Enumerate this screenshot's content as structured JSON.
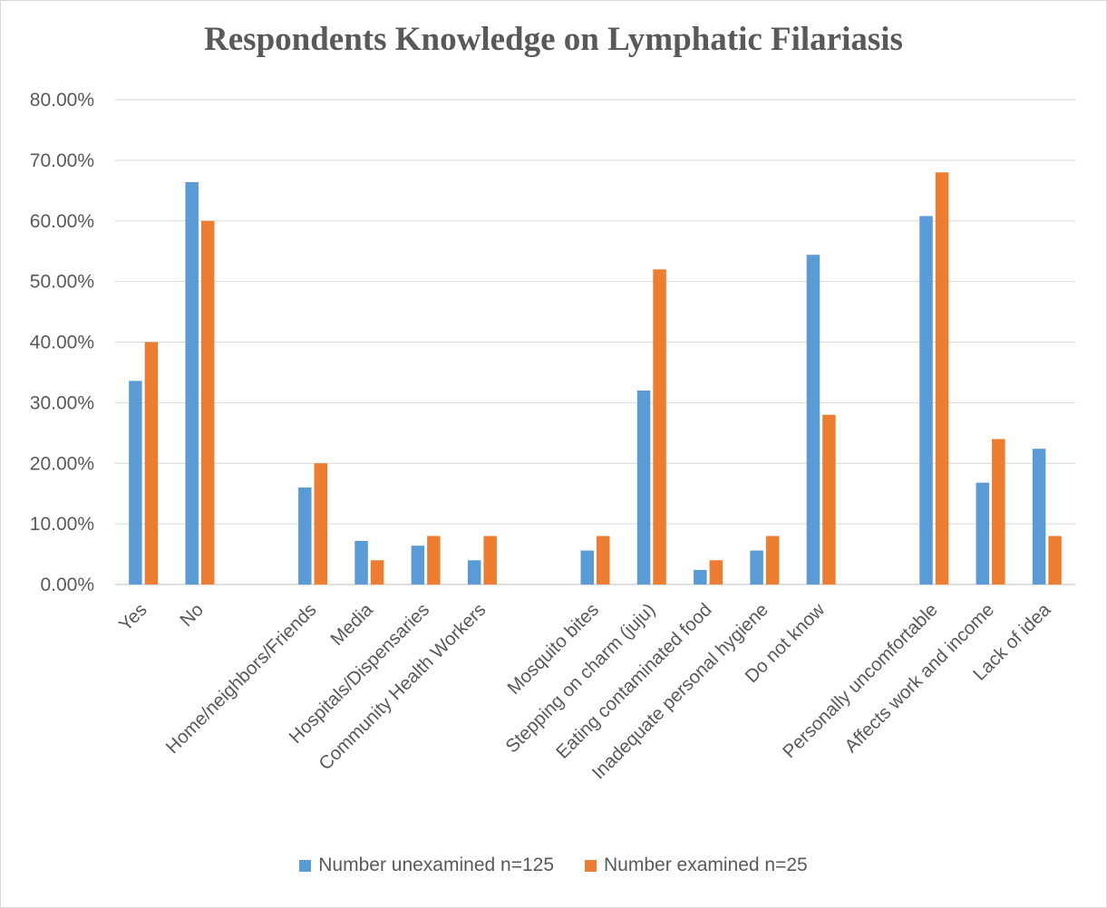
{
  "chart_data": {
    "type": "bar",
    "title": "Respondents Knowledge on Lymphatic Filariasis",
    "xlabel": "",
    "ylabel": "",
    "ylim": [
      0,
      80
    ],
    "yticks": [
      "0.00%",
      "10.00%",
      "20.00%",
      "30.00%",
      "40.00%",
      "50.00%",
      "60.00%",
      "70.00%",
      "80.00%"
    ],
    "categories": [
      "Yes",
      "No",
      "",
      "Home/neighbors/Friends",
      "Media",
      "Hospitals/Dispensaries",
      "Community Health Workers",
      "",
      "Mosquito bites",
      "Stepping on charm (juju)",
      "Eating contaminated food",
      "Inadequate personal hygiene",
      "Do not know",
      "",
      "Personally uncomfortable",
      "Affects work and income",
      "Lack of idea"
    ],
    "series": [
      {
        "name": "Number unexamined n=125",
        "color": "#5b9bd5",
        "values": [
          33.6,
          66.4,
          null,
          16.0,
          7.2,
          6.4,
          4.0,
          null,
          5.6,
          32.0,
          2.4,
          5.6,
          54.4,
          null,
          60.8,
          16.8,
          22.4
        ]
      },
      {
        "name": "Number examined n=25",
        "color": "#ed7d31",
        "values": [
          40.0,
          60.0,
          null,
          20.0,
          4.0,
          8.0,
          8.0,
          null,
          8.0,
          52.0,
          4.0,
          8.0,
          28.0,
          null,
          68.0,
          24.0,
          8.0
        ]
      }
    ],
    "grid": true,
    "legend_position": "bottom"
  }
}
